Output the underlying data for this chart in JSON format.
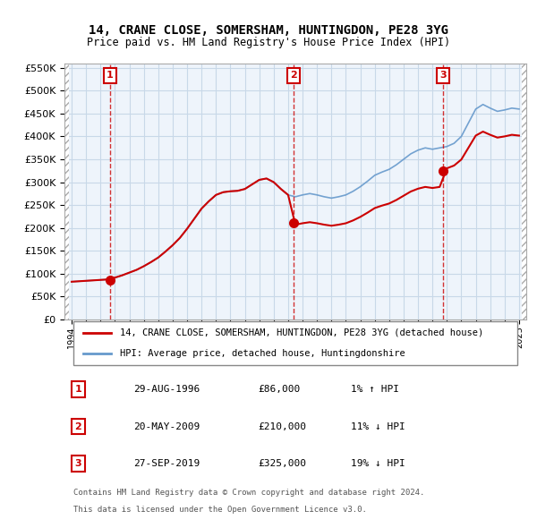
{
  "title": "14, CRANE CLOSE, SOMERSHAM, HUNTINGDON, PE28 3YG",
  "subtitle": "Price paid vs. HM Land Registry's House Price Index (HPI)",
  "legend_line1": "14, CRANE CLOSE, SOMERSHAM, HUNTINGDON, PE28 3YG (detached house)",
  "legend_line2": "HPI: Average price, detached house, Huntingdonshire",
  "footnote1": "Contains HM Land Registry data © Crown copyright and database right 2024.",
  "footnote2": "This data is licensed under the Open Government Licence v3.0.",
  "transactions": [
    {
      "num": 1,
      "date": "29-AUG-1996",
      "price": 86000,
      "hpi_rel": "1% ↑ HPI",
      "year": 1996.66
    },
    {
      "num": 2,
      "date": "20-MAY-2009",
      "price": 210000,
      "hpi_rel": "11% ↓ HPI",
      "year": 2009.38
    },
    {
      "num": 3,
      "date": "27-SEP-2019",
      "price": 325000,
      "hpi_rel": "19% ↓ HPI",
      "year": 2019.74
    }
  ],
  "ylim": [
    0,
    560000
  ],
  "yticks": [
    0,
    50000,
    100000,
    150000,
    200000,
    250000,
    300000,
    350000,
    400000,
    450000,
    500000,
    550000
  ],
  "xlim": [
    1993.5,
    2025.5
  ],
  "red_line_color": "#cc0000",
  "blue_line_color": "#6699cc",
  "hatch_color": "#cccccc",
  "grid_color": "#c8d8e8",
  "background_color": "#ddeeff",
  "plot_bg_color": "#eef4fb",
  "transaction_color": "#cc0000"
}
